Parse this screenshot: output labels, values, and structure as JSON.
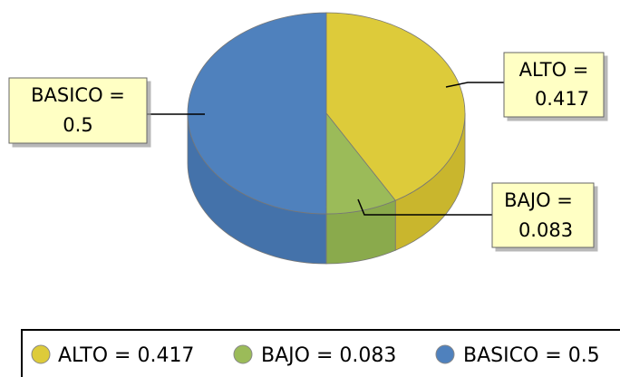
{
  "chart_data": {
    "type": "pie",
    "style": "3d",
    "slices": [
      {
        "label": "ALTO",
        "value": 0.417,
        "color": "#DDCB3A",
        "side_color": "#C9B62D",
        "callout": [
          "ALTO =",
          "0.417"
        ],
        "legend": "ALTO = 0.417"
      },
      {
        "label": "BAJO",
        "value": 0.083,
        "color": "#9BBB59",
        "side_color": "#8AAA4C",
        "callout": [
          "BAJO =",
          "0.083"
        ],
        "legend": "BAJO = 0.083"
      },
      {
        "label": "BASICO",
        "value": 0.5,
        "color": "#4F81BD",
        "side_color": "#4472AA",
        "callout": [
          "BASICO =",
          "0.5"
        ],
        "legend": "BASICO = 0.5"
      }
    ],
    "legend_position": "bottom",
    "callout_fill": "#FFFFC4"
  }
}
